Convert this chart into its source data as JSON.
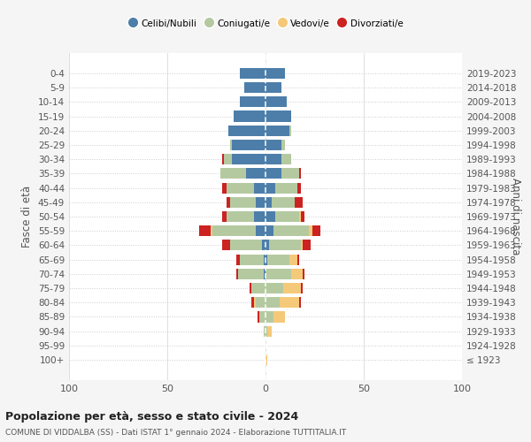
{
  "age_groups": [
    "100+",
    "95-99",
    "90-94",
    "85-89",
    "80-84",
    "75-79",
    "70-74",
    "65-69",
    "60-64",
    "55-59",
    "50-54",
    "45-49",
    "40-44",
    "35-39",
    "30-34",
    "25-29",
    "20-24",
    "15-19",
    "10-14",
    "5-9",
    "0-4"
  ],
  "birth_years": [
    "≤ 1923",
    "1924-1928",
    "1929-1933",
    "1934-1938",
    "1939-1943",
    "1944-1948",
    "1949-1953",
    "1954-1958",
    "1959-1963",
    "1964-1968",
    "1969-1973",
    "1974-1978",
    "1979-1983",
    "1984-1988",
    "1989-1993",
    "1994-1998",
    "1999-2003",
    "2004-2008",
    "2009-2013",
    "2014-2018",
    "2019-2023"
  ],
  "male": {
    "celibi": [
      0,
      0,
      0,
      0,
      0,
      0,
      1,
      1,
      2,
      5,
      6,
      5,
      6,
      10,
      17,
      17,
      19,
      16,
      13,
      11,
      13
    ],
    "coniugati": [
      0,
      0,
      1,
      3,
      5,
      7,
      13,
      12,
      16,
      22,
      14,
      13,
      14,
      13,
      4,
      1,
      0,
      0,
      0,
      0,
      0
    ],
    "vedovi": [
      0,
      0,
      0,
      0,
      1,
      0,
      0,
      0,
      0,
      1,
      0,
      0,
      0,
      0,
      0,
      0,
      0,
      0,
      0,
      0,
      0
    ],
    "divorziati": [
      0,
      0,
      0,
      1,
      1,
      1,
      1,
      2,
      4,
      6,
      2,
      2,
      2,
      0,
      1,
      0,
      0,
      0,
      0,
      0,
      0
    ]
  },
  "female": {
    "nubili": [
      0,
      0,
      0,
      0,
      0,
      0,
      0,
      1,
      2,
      4,
      5,
      3,
      5,
      8,
      8,
      8,
      12,
      13,
      11,
      8,
      10
    ],
    "coniugate": [
      0,
      0,
      1,
      4,
      7,
      9,
      13,
      11,
      16,
      18,
      12,
      12,
      11,
      9,
      5,
      2,
      1,
      0,
      0,
      0,
      0
    ],
    "vedove": [
      1,
      0,
      2,
      6,
      10,
      9,
      6,
      4,
      1,
      2,
      1,
      0,
      0,
      0,
      0,
      0,
      0,
      0,
      0,
      0,
      0
    ],
    "divorziate": [
      0,
      0,
      0,
      0,
      1,
      1,
      1,
      1,
      4,
      4,
      2,
      4,
      2,
      1,
      0,
      0,
      0,
      0,
      0,
      0,
      0
    ]
  },
  "colors": {
    "celibi": "#4d7eaa",
    "coniugati": "#b5c9a1",
    "vedovi": "#f5c97a",
    "divorziati": "#cc2222"
  },
  "title": "Popolazione per età, sesso e stato civile - 2024",
  "subtitle": "COMUNE DI VIDDALBA (SS) - Dati ISTAT 1° gennaio 2024 - Elaborazione TUTTITALIA.IT",
  "ylabel_left": "Fasce di età",
  "ylabel_right": "Anni di nascita",
  "xlim": 100,
  "bg_color": "#f5f5f5",
  "plot_bg": "#ffffff",
  "legend_labels": [
    "Celibi/Nubili",
    "Coniugati/e",
    "Vedovi/e",
    "Divorziati/e"
  ]
}
